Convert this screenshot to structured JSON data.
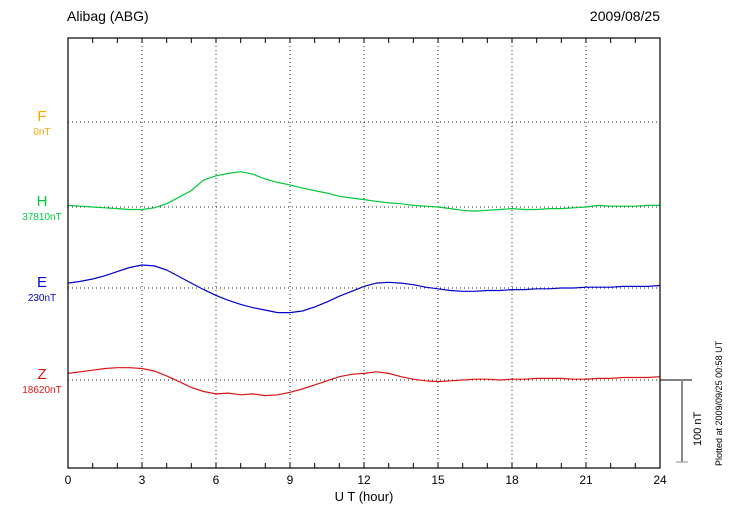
{
  "header": {
    "title": "Alibag (ABG)",
    "date": "2009/08/25"
  },
  "chart_data": {
    "type": "line",
    "title": "Alibag (ABG)",
    "date": "2009/08/25",
    "xlabel": "U T (hour)",
    "x_range": [
      0,
      24
    ],
    "x_ticks": [
      0,
      3,
      6,
      9,
      12,
      15,
      18,
      21,
      24
    ],
    "x_step_hours": 0.5,
    "y_unit": "nT",
    "grid": "dotted vertical lines at 3-hour ticks; dotted horizontal baseline per component",
    "legend_position": "left",
    "scale_bar": {
      "label": "100 nT",
      "nT": 100
    },
    "plotted_at": "Plotted at 2009/09/25 00:58 UT",
    "series": [
      {
        "name": "F",
        "baseline_label": "0nT",
        "color": "#ffa500",
        "offsets_nT": []
      },
      {
        "name": "H",
        "baseline_label": "37810nT",
        "color": "#00c83c",
        "offsets_nT": [
          2,
          1,
          0,
          -1,
          -2,
          -3,
          -3,
          -1,
          4,
          12,
          20,
          33,
          38,
          41,
          43,
          40,
          34,
          30,
          27,
          23,
          20,
          17,
          13,
          11,
          9,
          7,
          5,
          4,
          2,
          1,
          0,
          -2,
          -4,
          -5,
          -4,
          -3,
          -2,
          -3,
          -3,
          -2,
          -2,
          -1,
          0,
          2,
          1,
          1,
          1,
          2,
          2
        ]
      },
      {
        "name": "E",
        "baseline_label": "230nT",
        "color": "#0000cd",
        "offsets_nT": [
          6,
          8,
          11,
          15,
          20,
          25,
          28,
          27,
          22,
          14,
          6,
          -2,
          -9,
          -15,
          -20,
          -24,
          -27,
          -30,
          -30,
          -28,
          -23,
          -17,
          -10,
          -4,
          2,
          6,
          7,
          6,
          4,
          1,
          -1,
          -3,
          -4,
          -4,
          -3,
          -3,
          -2,
          -2,
          -1,
          -1,
          0,
          0,
          1,
          1,
          1,
          2,
          2,
          2,
          3
        ]
      },
      {
        "name": "Z",
        "baseline_label": "18620nT",
        "color": "#dc1414",
        "offsets_nT": [
          8,
          10,
          12,
          14,
          15,
          15,
          14,
          11,
          5,
          -2,
          -9,
          -14,
          -17,
          -16,
          -18,
          -17,
          -19,
          -18,
          -15,
          -11,
          -6,
          -1,
          4,
          7,
          8,
          10,
          8,
          4,
          1,
          -1,
          -2,
          -1,
          0,
          1,
          1,
          0,
          1,
          1,
          2,
          2,
          2,
          1,
          1,
          2,
          2,
          3,
          3,
          3,
          4
        ]
      }
    ]
  }
}
